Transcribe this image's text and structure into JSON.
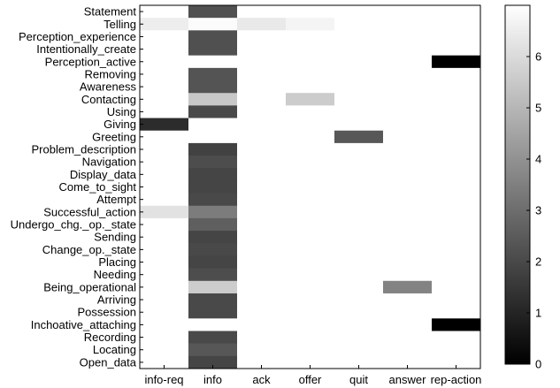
{
  "chart_data": {
    "type": "heatmap",
    "title": "",
    "xlabel": "",
    "ylabel": "",
    "x_categories": [
      "info-req",
      "info",
      "ack",
      "offer",
      "quit",
      "answer",
      "rep-action"
    ],
    "y_categories": [
      "Statement",
      "Telling",
      "Perception_experience",
      "Intentionally_create",
      "Perception_active",
      "Removing",
      "Awareness",
      "Contacting",
      "Using",
      "Giving",
      "Greeting",
      "Problem_description",
      "Navigation",
      "Display_data",
      "Come_to_sight",
      "Attempt",
      "Successful_action",
      "Undergo_chg._op._state",
      "Sending",
      "Change_op._state",
      "Placing",
      "Needing",
      "Being_operational",
      "Arriving",
      "Possession",
      "Inchoative_attaching",
      "Recording",
      "Locating",
      "Open_data"
    ],
    "values": [
      [
        7,
        2.2,
        7,
        7,
        7,
        7,
        7
      ],
      [
        6.5,
        6.9,
        6.4,
        6.7,
        7,
        7,
        7
      ],
      [
        7,
        2.2,
        7,
        7,
        7,
        7,
        7
      ],
      [
        7,
        2.2,
        7,
        7,
        7,
        7,
        7
      ],
      [
        7,
        7,
        7,
        7,
        7,
        7,
        0
      ],
      [
        7,
        2.3,
        7,
        7,
        7,
        7,
        7
      ],
      [
        7,
        2.3,
        7,
        7,
        7,
        7,
        7
      ],
      [
        7,
        5.5,
        7,
        5.6,
        7,
        7,
        7
      ],
      [
        7,
        2.0,
        7,
        7,
        7,
        7,
        7
      ],
      [
        1.2,
        7,
        7,
        7,
        7,
        7,
        7
      ],
      [
        7,
        7,
        7,
        7,
        2.4,
        7,
        7
      ],
      [
        7,
        1.8,
        7,
        7,
        7,
        7,
        7
      ],
      [
        7,
        2.1,
        7,
        7,
        7,
        7,
        7
      ],
      [
        7,
        1.9,
        7,
        7,
        7,
        7,
        7
      ],
      [
        7,
        1.9,
        7,
        7,
        7,
        7,
        7
      ],
      [
        7,
        2.0,
        7,
        7,
        7,
        7,
        7
      ],
      [
        6.2,
        3.4,
        7,
        7,
        7,
        7,
        7
      ],
      [
        7,
        2.6,
        7,
        7,
        7,
        7,
        7
      ],
      [
        7,
        1.9,
        7,
        7,
        7,
        7,
        7
      ],
      [
        7,
        2.0,
        7,
        7,
        7,
        7,
        7
      ],
      [
        7,
        1.9,
        7,
        7,
        7,
        7,
        7
      ],
      [
        7,
        2.1,
        7,
        7,
        7,
        7,
        7
      ],
      [
        7,
        5.6,
        7,
        7,
        7,
        3.6,
        7
      ],
      [
        7,
        2.0,
        7,
        7,
        7,
        7,
        7
      ],
      [
        7,
        2.0,
        7,
        7,
        7,
        7,
        7
      ],
      [
        7,
        7,
        7,
        7,
        7,
        7,
        0
      ],
      [
        7,
        2.0,
        7,
        7,
        7,
        7,
        7
      ],
      [
        7,
        2.4,
        7,
        7,
        7,
        7,
        7
      ],
      [
        7,
        1.9,
        7,
        7,
        7,
        7,
        7
      ]
    ],
    "colorbar": {
      "min": 0,
      "max": 7,
      "ticks": [
        "0",
        "1",
        "2",
        "3",
        "4",
        "5",
        "6"
      ],
      "colormap": "gray"
    },
    "grid": false,
    "legend": "colorbar-right"
  }
}
